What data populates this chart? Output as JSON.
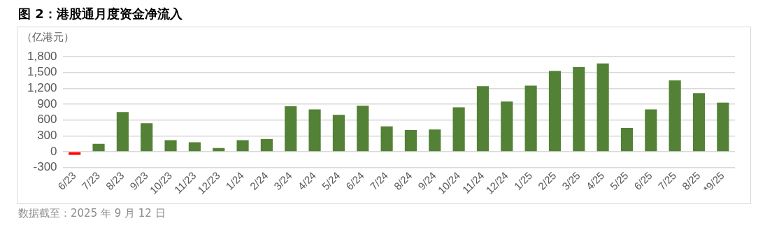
{
  "chart_data": {
    "type": "bar",
    "title": "图 2：港股通月度资金净流入",
    "ylabel": "（亿港元）",
    "categories": [
      "6/23",
      "7/23",
      "8/23",
      "9/23",
      "10/23",
      "11/23",
      "12/23",
      "1/24",
      "2/24",
      "3/24",
      "4/24",
      "5/24",
      "6/24",
      "7/24",
      "8/24",
      "9/24",
      "10/24",
      "11/24",
      "12/24",
      "1/25",
      "2/25",
      "3/25",
      "4/25",
      "5/25",
      "6/25",
      "7/25",
      "8/25",
      "*9/25"
    ],
    "values": [
      -60,
      150,
      750,
      540,
      220,
      180,
      70,
      220,
      240,
      860,
      800,
      700,
      870,
      480,
      410,
      420,
      840,
      1240,
      950,
      1250,
      1530,
      1600,
      1670,
      450,
      800,
      1350,
      1110,
      930
    ],
    "colors": [
      "#ff0000",
      "#538135",
      "#538135",
      "#538135",
      "#538135",
      "#538135",
      "#538135",
      "#538135",
      "#538135",
      "#538135",
      "#538135",
      "#538135",
      "#538135",
      "#538135",
      "#538135",
      "#538135",
      "#538135",
      "#538135",
      "#538135",
      "#538135",
      "#538135",
      "#538135",
      "#538135",
      "#538135",
      "#538135",
      "#538135",
      "#538135",
      "#538135"
    ],
    "ylim": [
      -300,
      1800
    ],
    "yticks": [
      -300,
      0,
      300,
      600,
      900,
      {
        "value": 1200,
        "label": "1,200"
      },
      {
        "value": 1500,
        "label": "1,500"
      },
      {
        "value": 1800,
        "label": "1,800"
      }
    ],
    "grid": "y",
    "annotations": [
      "数据截至：2025 年 9 月 12 日"
    ]
  }
}
